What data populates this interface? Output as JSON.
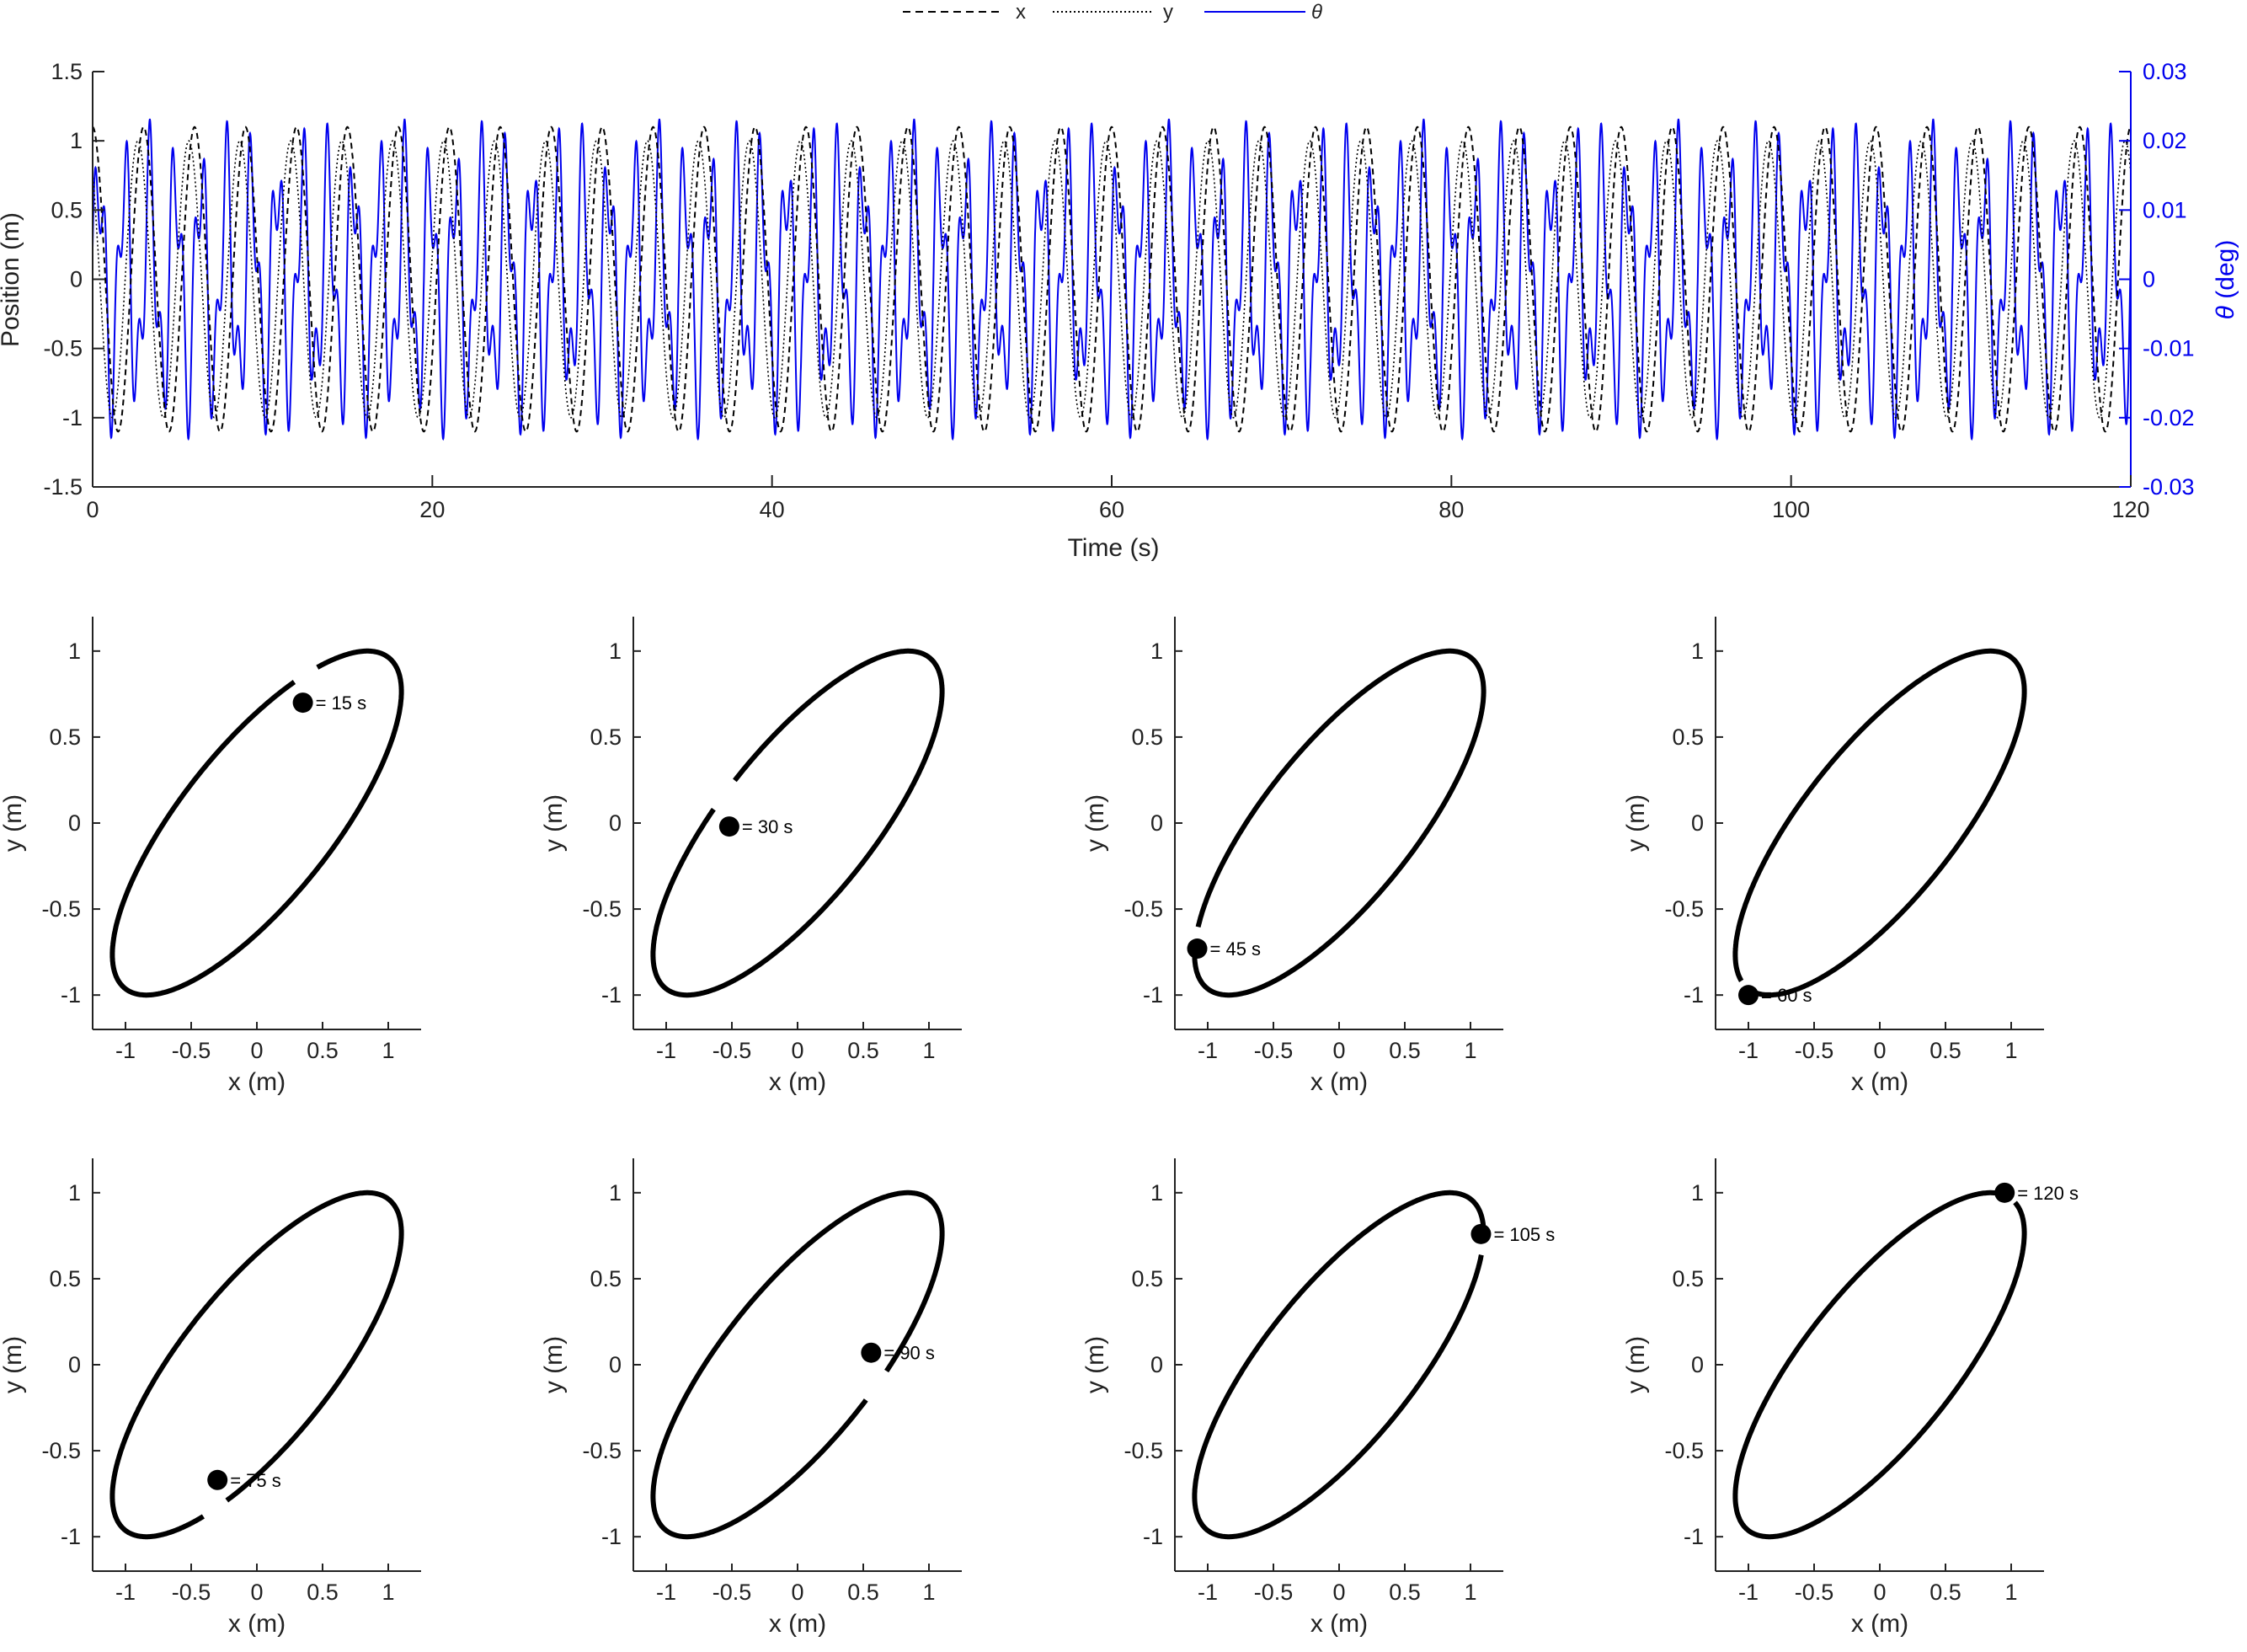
{
  "chart_data": [
    {
      "type": "line",
      "xlabel": "Time (s)",
      "ylabel": "Position (m)",
      "y2label": "θ (deg)",
      "xlim": [
        0,
        120
      ],
      "ylim": [
        -1.5,
        1.5
      ],
      "y2lim": [
        -0.03,
        0.03
      ],
      "xticks": [
        "0",
        "20",
        "40",
        "60",
        "80",
        "100",
        "120"
      ],
      "yticks": [
        "-1.5",
        "-1",
        "-0.5",
        "0",
        "0.5",
        "1",
        "1.5"
      ],
      "y2ticks": [
        "-0.03",
        "-0.02",
        "-0.01",
        "0",
        "0.01",
        "0.02",
        "0.03"
      ],
      "legend": "top-center",
      "series": [
        {
          "name": "x",
          "style": "dashed",
          "color": "#000000",
          "amplitude": 1.1,
          "period_s": 3.0,
          "phase": 0.0
        },
        {
          "name": "y",
          "style": "dotted",
          "color": "#000000",
          "amplitude": 1.0,
          "period_s": 3.0,
          "phase": 0.7
        },
        {
          "name": "θ",
          "style": "solid",
          "color": "#0000ee",
          "amplitude": 0.021,
          "period_s": 1.5,
          "axis": "right"
        }
      ]
    },
    {
      "type": "line",
      "panels": [
        {
          "time_label": "= 15 s",
          "marker": [
            0.35,
            0.7
          ]
        },
        {
          "time_label": "= 30 s",
          "marker": [
            -0.52,
            -0.02
          ]
        },
        {
          "time_label": "= 45 s",
          "marker": [
            -1.08,
            -0.73
          ]
        },
        {
          "time_label": "= 60 s",
          "marker": [
            -1.0,
            -1.0
          ]
        },
        {
          "time_label": "= 75 s",
          "marker": [
            -0.3,
            -0.67
          ]
        },
        {
          "time_label": "= 90 s",
          "marker": [
            0.56,
            0.07
          ]
        },
        {
          "time_label": "= 105 s",
          "marker": [
            1.08,
            0.76
          ]
        },
        {
          "time_label": "= 120 s",
          "marker": [
            0.95,
            1.0
          ]
        }
      ],
      "xlabel": "x (m)",
      "ylabel": "y (m)",
      "xlim": [
        -1.25,
        1.25
      ],
      "ylim": [
        -1.2,
        1.2
      ],
      "xticks": [
        "-1",
        "-0.5",
        "0",
        "0.5",
        "1"
      ],
      "yticks": [
        "-1",
        "-0.5",
        "0",
        "0.5",
        "1"
      ],
      "trajectory": {
        "x_amplitude": 1.1,
        "y_amplitude": 1.0,
        "phase_shift_rad": 0.7,
        "color": "#000000"
      }
    }
  ]
}
